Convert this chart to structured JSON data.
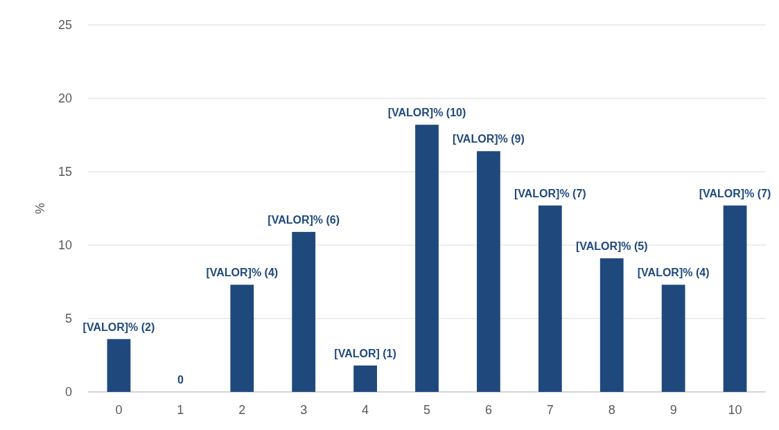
{
  "chart_data": {
    "type": "bar",
    "ylabel": "%",
    "categories": [
      "0",
      "1",
      "2",
      "3",
      "4",
      "5",
      "6",
      "7",
      "8",
      "9",
      "10"
    ],
    "values": [
      3.6,
      0,
      7.3,
      10.9,
      1.8,
      18.2,
      16.4,
      12.7,
      9.1,
      7.3,
      12.7
    ],
    "annotations": [
      {
        "text": "[VALOR]% (2)",
        "x": "0",
        "y": 3.6
      },
      {
        "text": "0",
        "x": "1",
        "y": 0
      },
      {
        "text": "[VALOR]% (4)",
        "x": "2",
        "y": 7.3
      },
      {
        "text": "[VALOR]% (6)",
        "x": "3",
        "y": 10.9
      },
      {
        "text": "[VALOR] (1)",
        "x": "4",
        "y": 1.8
      },
      {
        "text": "[VALOR]% (10)",
        "x": "5",
        "y": 18.2
      },
      {
        "text": "[VALOR]% (9)",
        "x": "6",
        "y": 16.4
      },
      {
        "text": "[VALOR]% (7)",
        "x": "7",
        "y": 12.7
      },
      {
        "text": "[VALOR]% (5)",
        "x": "8",
        "y": 9.1
      },
      {
        "text": "[VALOR]% (4)",
        "x": "9",
        "y": 7.3
      },
      {
        "text": "[VALOR]% (7)",
        "x": "10",
        "y": 12.7
      }
    ],
    "color": "#1f497d",
    "ylim": [
      0,
      25
    ],
    "yticks": [
      0,
      5,
      10,
      15,
      20,
      25
    ],
    "grid": "y"
  }
}
